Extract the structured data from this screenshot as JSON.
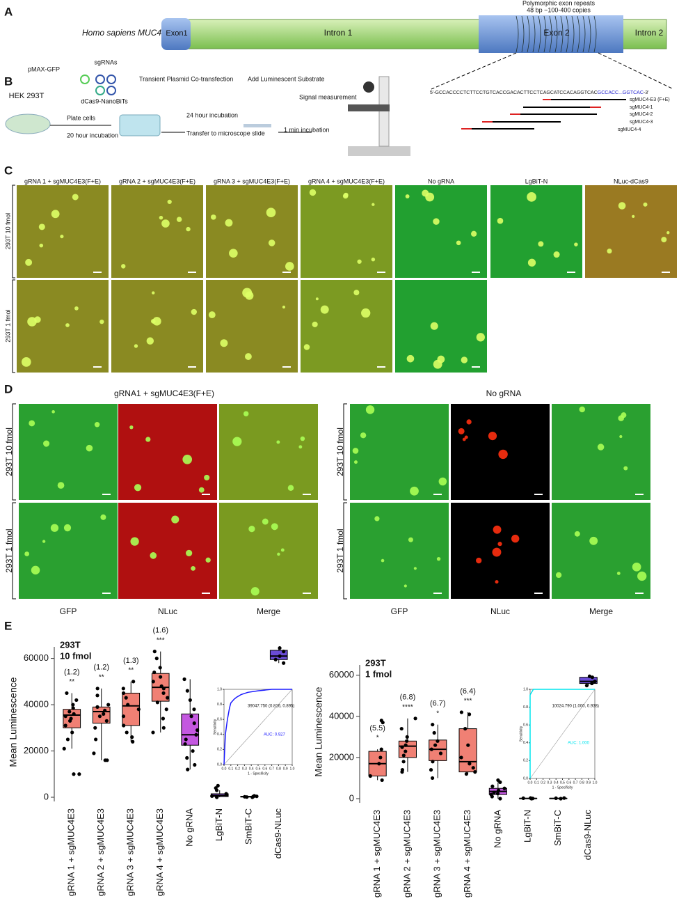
{
  "panels": {
    "A": {
      "label": "A",
      "species": "Homo sapiens MUC4",
      "exon1": "Exon1",
      "intron1": "Intron 1",
      "exon2": "Exon 2",
      "intron2": "Intron 2",
      "repeat_title": "Polymorphic exon repeats",
      "repeat_detail": "48 bp ~100-400 copies",
      "sequence": "5'-GCCACCCCTCTTCCTGTCACCGACACTTCCTCAGCATCCACAGGTCAC",
      "sequence_repeat": "GCCACC...GGTCAC",
      "sequence_end": "-3'",
      "guides": [
        "sgMUC4-E3 (F+E)",
        "sgMUC4-1",
        "sgMUC4-2",
        "sgMUC4-3",
        "sgMUC4-4"
      ]
    },
    "B": {
      "label": "B",
      "cells": "HEK 293T",
      "plasmid": "pMAX-GFP",
      "sgrnas": "sgRNAs",
      "nanobits": "dCas9-NanoBiTs",
      "transfection": "Transient Plasmid Co-transfection",
      "plate": "Plate cells",
      "plate_incubation": "20 hour incubation",
      "incubation": "24 hour incubation",
      "transfer": "Transfer to microscope slide",
      "substrate": "Add Luminescent Substrate",
      "measure": "Signal measurement",
      "min_incubation": "1 min incubation"
    },
    "C": {
      "label": "C",
      "columns": [
        "gRNA 1 + sgMUC4E3(F+E)",
        "gRNA 2 + sgMUC4E3(F+E)",
        "gRNA 3 + sgMUC4E3(F+E)",
        "gRNA 4 + sgMUC4E3(F+E)",
        "No gRNA",
        "LgBiT-N",
        "NLuc-dCas9"
      ],
      "rows": [
        "293T 10 fmol",
        "293T 1 fmol"
      ]
    },
    "D": {
      "label": "D",
      "groups": [
        "gRNA1 + sgMUC4E3(F+E)",
        "No gRNA"
      ],
      "rows": [
        "293T 10 fmol",
        "293T 1 fmol"
      ],
      "channels": [
        "GFP",
        "NLuc",
        "Merge"
      ]
    },
    "E": {
      "label": "E"
    }
  },
  "chart_data": [
    {
      "type": "box",
      "annotation": "293T",
      "subtitle": "10 fmol",
      "ylabel": "Mean Luminescence",
      "ylim": [
        0,
        65000
      ],
      "yticks": [
        0,
        20000,
        40000,
        60000
      ],
      "categories": [
        "gRNA 1 + sgMUC4E3",
        "gRNA 2 + sgMUC4E3",
        "gRNA 3 + sgMUC4E3",
        "gRNA 4 + sgMUC4E3",
        "No gRNA",
        "LgBiT-N",
        "SmBiT-C",
        "dCas9-NLuc"
      ],
      "fold_labels": [
        "(1.2)",
        "(1.2)",
        "(1.3)",
        "(1.6)"
      ],
      "significance": [
        "**",
        "**",
        "**",
        "***"
      ],
      "boxes": [
        {
          "color": "#f08074",
          "min": 21000,
          "q1": 30000,
          "median": 35500,
          "q3": 38000,
          "max": 45000,
          "points": [
            45000,
            42000,
            40000,
            38500,
            37000,
            36000,
            35000,
            34000,
            33000,
            31000,
            28000,
            25000,
            21000,
            10000,
            10000
          ]
        },
        {
          "color": "#f08074",
          "min": 16000,
          "q1": 32000,
          "median": 37000,
          "q3": 39000,
          "max": 47000,
          "points": [
            47000,
            44000,
            40000,
            39000,
            37500,
            36000,
            35000,
            33000,
            30000,
            25000,
            19000,
            16000,
            16000
          ]
        },
        {
          "color": "#f08074",
          "min": 24000,
          "q1": 31000,
          "median": 39500,
          "q3": 45000,
          "max": 50000,
          "points": [
            50000,
            47000,
            45000,
            43000,
            40000,
            38000,
            35000,
            31000,
            28000,
            26000,
            24000
          ]
        },
        {
          "color": "#f08074",
          "min": 28000,
          "q1": 41500,
          "median": 47500,
          "q3": 53500,
          "max": 63000,
          "points": [
            63000,
            60000,
            56000,
            54000,
            52000,
            50000,
            48000,
            47000,
            45000,
            43000,
            41000,
            38000,
            34000,
            30000,
            28000
          ]
        },
        {
          "color": "#c458e0",
          "min": 12000,
          "q1": 22500,
          "median": 27000,
          "q3": 36000,
          "max": 51000,
          "points": [
            51000,
            46000,
            42000,
            38000,
            35000,
            32000,
            29000,
            27000,
            25000,
            23000,
            20000,
            17000,
            14000,
            12000
          ]
        },
        {
          "color": "#8b4fd8",
          "min": 0,
          "q1": 300,
          "median": 800,
          "q3": 1500,
          "max": 3000,
          "points": [
            5000,
            4000,
            3000,
            1500,
            1000,
            500,
            200,
            0
          ]
        },
        {
          "color": "#8b4fd8",
          "min": 0,
          "q1": 100,
          "median": 250,
          "q3": 400,
          "max": 600,
          "points": [
            600,
            400,
            300,
            200,
            100,
            0
          ]
        },
        {
          "color": "#6a4cd6",
          "min": 58000,
          "q1": 59500,
          "median": 61000,
          "q3": 63500,
          "max": 64500,
          "points": [
            64500,
            63000,
            61000,
            59500,
            58000
          ]
        }
      ]
    },
    {
      "type": "box",
      "annotation": "293T",
      "subtitle": "1 fmol",
      "ylabel": "Mean Luminescence",
      "ylim": [
        0,
        65000
      ],
      "yticks": [
        0,
        20000,
        40000,
        60000
      ],
      "categories": [
        "gRNA 1 + sgMUC4E3",
        "gRNA 2 + sgMUC4E3",
        "gRNA 3 + sgMUC4E3",
        "gRNA 4 + sgMUC4E3",
        "No gRNA",
        "LgBiT-N",
        "SmBiT-C",
        "dCas9-NLuc"
      ],
      "fold_labels": [
        "(5.5)",
        "(6.8)",
        "(6.7)",
        "(6.4)"
      ],
      "significance": [
        "*",
        "****",
        "*",
        "***"
      ],
      "boxes": [
        {
          "color": "#f08074",
          "min": 9000,
          "q1": 11000,
          "median": 17000,
          "q3": 23000,
          "max": 24000,
          "points": [
            38000,
            37000,
            24000,
            20000,
            17000,
            11000,
            9000
          ]
        },
        {
          "color": "#f08074",
          "min": 13000,
          "q1": 20000,
          "median": 25500,
          "q3": 28000,
          "max": 39000,
          "points": [
            39000,
            34000,
            30000,
            28000,
            26000,
            25000,
            23000,
            21000,
            18000,
            14000,
            13000
          ]
        },
        {
          "color": "#f08074",
          "min": 10000,
          "q1": 18500,
          "median": 24000,
          "q3": 28500,
          "max": 36000,
          "points": [
            36000,
            32000,
            28000,
            26000,
            24000,
            22000,
            18000,
            14000,
            10000
          ]
        },
        {
          "color": "#f08074",
          "min": 12000,
          "q1": 13000,
          "median": 18000,
          "q3": 34000,
          "max": 42000,
          "points": [
            42000,
            41000,
            34000,
            26000,
            20000,
            17000,
            15000,
            13000,
            12000
          ]
        },
        {
          "color": "#c458e0",
          "min": 0,
          "q1": 2000,
          "median": 3500,
          "q3": 5000,
          "max": 8000,
          "points": [
            9000,
            8000,
            6000,
            5000,
            4000,
            3000,
            2500,
            2000,
            1000,
            0
          ]
        },
        {
          "color": "#8b4fd8",
          "min": 0,
          "q1": 50,
          "median": 100,
          "q3": 200,
          "max": 300,
          "points": [
            300,
            200,
            100,
            0
          ]
        },
        {
          "color": "#8b4fd8",
          "min": 0,
          "q1": 50,
          "median": 100,
          "q3": 200,
          "max": 300,
          "points": [
            300,
            200,
            0
          ]
        },
        {
          "color": "#6a4cd6",
          "min": 55000,
          "q1": 56000,
          "median": 57000,
          "q3": 59000,
          "max": 59500,
          "points": [
            59500,
            59000,
            57000,
            56000,
            55000
          ]
        }
      ]
    },
    {
      "type": "line",
      "xlabel": "1 - Specificity",
      "ylabel": "Sensitivity",
      "color": "#1a1aff",
      "annotation": "39047.750 (0.816, 0.895)",
      "auc": "AUC: 0.927",
      "x": [
        0,
        0.02,
        0.05,
        0.08,
        0.1,
        0.15,
        0.184,
        0.25,
        0.35,
        0.5,
        0.7,
        1
      ],
      "y": [
        0,
        0.4,
        0.6,
        0.75,
        0.82,
        0.87,
        0.895,
        0.93,
        0.96,
        0.98,
        1,
        1
      ],
      "xlim": [
        0,
        1
      ],
      "ylim": [
        0,
        1
      ],
      "xticks": [
        {
          "value": 0,
          "label": "0.0"
        },
        {
          "value": 0.1,
          "label": "0.1"
        },
        {
          "value": 0.2,
          "label": "0.2"
        },
        {
          "value": 0.3,
          "label": "0.3"
        },
        {
          "value": 0.4,
          "label": "0.4"
        },
        {
          "value": 0.5,
          "label": "0.5"
        },
        {
          "value": 0.6,
          "label": "0.6"
        },
        {
          "value": 0.7,
          "label": "0.7"
        },
        {
          "value": 0.8,
          "label": "0.8"
        },
        {
          "value": 0.9,
          "label": "0.9"
        },
        {
          "value": 1,
          "label": "1.0"
        }
      ],
      "yticks": [
        {
          "value": 0,
          "label": "0.0"
        },
        {
          "value": 0.2,
          "label": "0.2"
        },
        {
          "value": 0.4,
          "label": "0.4"
        },
        {
          "value": 0.6,
          "label": "0.6"
        },
        {
          "value": 0.8,
          "label": "0.8"
        },
        {
          "value": 1,
          "label": "1.0"
        }
      ]
    },
    {
      "type": "line",
      "xlabel": "1 - Specificity",
      "ylabel": "Sensitivity",
      "color": "#00e5ee",
      "annotation": "10024.790 (1.000, 0.938)",
      "auc": "AUC: 1.000",
      "x": [
        0,
        0,
        0.05,
        1
      ],
      "y": [
        0,
        0.938,
        1,
        1
      ],
      "xlim": [
        0,
        1
      ],
      "ylim": [
        0,
        1
      ],
      "xticks": [
        {
          "value": 0,
          "label": "0.0"
        },
        {
          "value": 0.1,
          "label": "0.1"
        },
        {
          "value": 0.2,
          "label": "0.2"
        },
        {
          "value": 0.3,
          "label": "0.3"
        },
        {
          "value": 0.4,
          "label": "0.4"
        },
        {
          "value": 0.5,
          "label": "0.5"
        },
        {
          "value": 0.6,
          "label": "0.6"
        },
        {
          "value": 0.7,
          "label": "0.7"
        },
        {
          "value": 0.8,
          "label": "0.8"
        },
        {
          "value": 0.9,
          "label": "0.9"
        },
        {
          "value": 1,
          "label": "1.0"
        }
      ],
      "yticks": [
        {
          "value": 0,
          "label": "0.0"
        },
        {
          "value": 0.2,
          "label": "0.2"
        },
        {
          "value": 0.4,
          "label": "0.4"
        },
        {
          "value": 0.6,
          "label": "0.6"
        },
        {
          "value": 0.8,
          "label": "0.8"
        },
        {
          "value": 1,
          "label": "1.0"
        }
      ]
    }
  ]
}
